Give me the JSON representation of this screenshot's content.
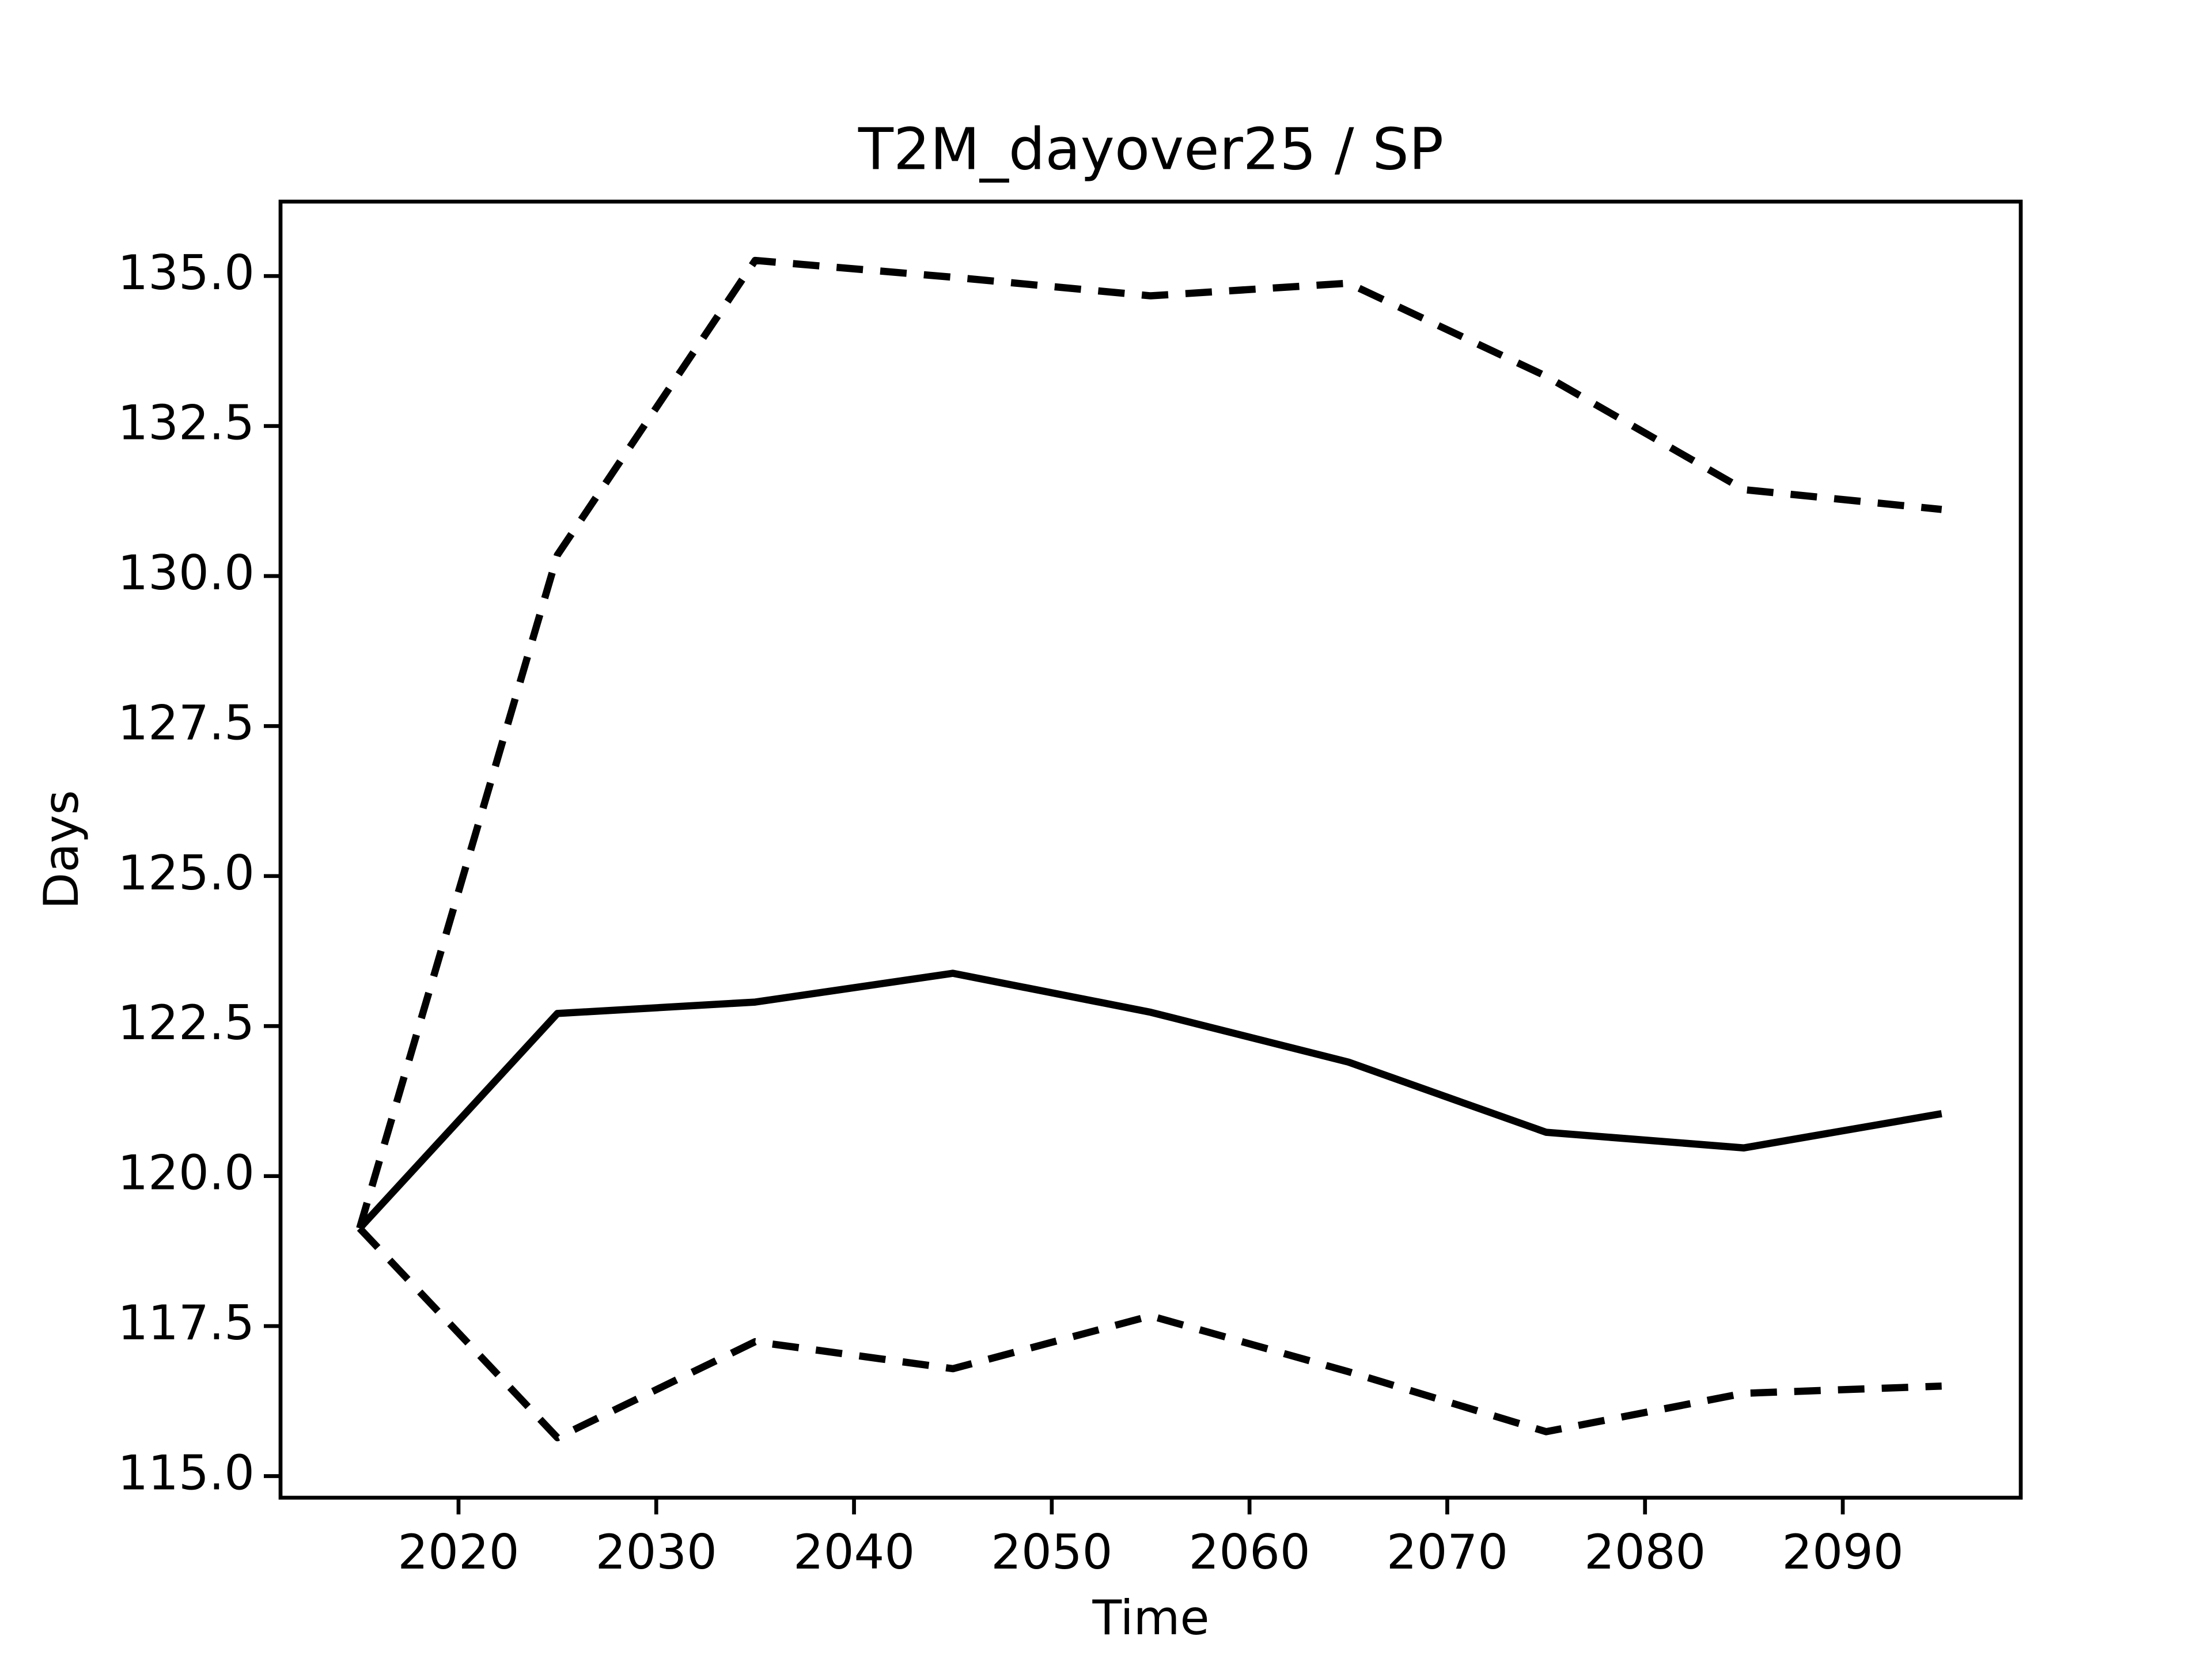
{
  "chart_data": {
    "type": "line",
    "title": "T2M_dayover25 / SP",
    "xlabel": "Time",
    "ylabel": "Days",
    "x": [
      2015,
      2025,
      2035,
      2045,
      2055,
      2065,
      2075,
      2085,
      2095
    ],
    "series": [
      {
        "color": "#000000",
        "dash": true,
        "values": [
          119.13,
          130.35,
          135.26,
          134.98,
          134.67,
          134.88,
          133.33,
          131.44,
          131.11
        ]
      },
      {
        "color": "#000000",
        "dash": false,
        "values": [
          119.13,
          122.71,
          122.9,
          123.38,
          122.73,
          121.9,
          120.73,
          120.47,
          121.04
        ]
      },
      {
        "color": "#000000",
        "dash": true,
        "values": [
          119.13,
          115.64,
          117.24,
          116.79,
          117.67,
          116.74,
          115.74,
          116.38,
          116.5
        ]
      }
    ],
    "xlim": [
      2011,
      2099
    ],
    "ylim": [
      114.64,
      136.24
    ],
    "xticks": [
      2020,
      2030,
      2040,
      2050,
      2060,
      2070,
      2080,
      2090
    ],
    "yticks": [
      {
        "value": 115,
        "label": "115.0"
      },
      {
        "value": 117.5,
        "label": "117.5"
      },
      {
        "value": 120,
        "label": "120.0"
      },
      {
        "value": 122.5,
        "label": "122.5"
      },
      {
        "value": 125,
        "label": "125.0"
      },
      {
        "value": 127.5,
        "label": "127.5"
      },
      {
        "value": 130,
        "label": "130.0"
      },
      {
        "value": 132.5,
        "label": "132.5"
      },
      {
        "value": 135,
        "label": "135.0"
      }
    ],
    "grid": false
  }
}
